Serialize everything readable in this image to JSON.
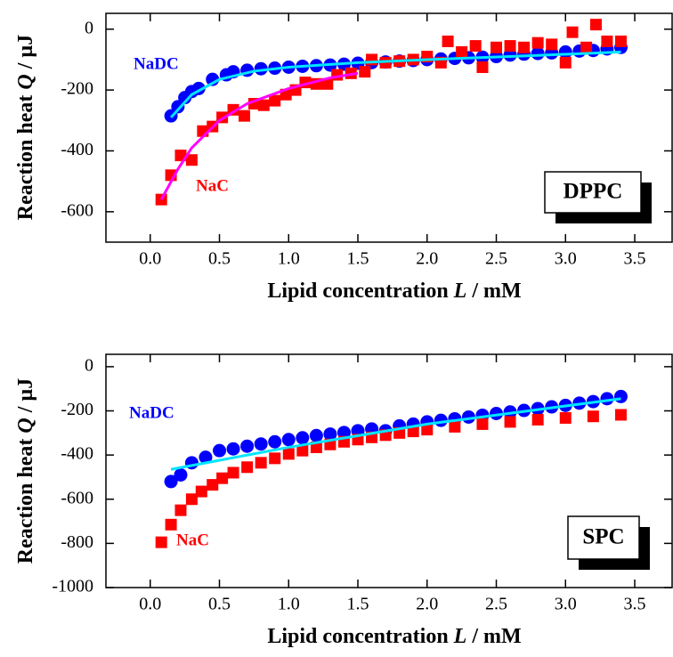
{
  "chart_data": [
    {
      "type": "scatter",
      "label": "DPPC",
      "xlabel": [
        "Lipid concentration ",
        "L",
        " / mM"
      ],
      "ylabel": [
        "Reaction heat ",
        "Q",
        " / µJ"
      ],
      "xlim": [
        -0.32,
        3.77
      ],
      "ylim": [
        -700,
        52
      ],
      "xticks": [
        {
          "value": 0,
          "label": "0.0"
        },
        0.5,
        {
          "value": 1,
          "label": "1.0"
        },
        1.5,
        {
          "value": 2,
          "label": "2.0"
        },
        2.5,
        {
          "value": 3,
          "label": "3.0"
        },
        3.5
      ],
      "yticks": [
        0,
        -200,
        -400,
        -600
      ],
      "series": [
        {
          "name": "NaDC",
          "color": "#0000ff",
          "marker": "circle",
          "x": [
            0.15,
            0.2,
            0.25,
            0.3,
            0.35,
            0.45,
            0.55,
            0.6,
            0.7,
            0.8,
            0.9,
            1.0,
            1.1,
            1.2,
            1.3,
            1.4,
            1.5,
            1.6,
            1.7,
            1.8,
            1.9,
            2.0,
            2.1,
            2.2,
            2.3,
            2.4,
            2.5,
            2.6,
            2.7,
            2.8,
            2.9,
            3.0,
            3.1,
            3.2,
            3.3,
            3.4
          ],
          "values": [
            -285,
            -255,
            -225,
            -205,
            -195,
            -165,
            -150,
            -140,
            -135,
            -130,
            -128,
            -125,
            -122,
            -120,
            -118,
            -115,
            -112,
            -110,
            -108,
            -105,
            -103,
            -100,
            -98,
            -96,
            -94,
            -92,
            -90,
            -85,
            -82,
            -80,
            -78,
            -75,
            -72,
            -70,
            -65,
            -60
          ]
        },
        {
          "name": "NaC",
          "color": "#ff0000",
          "marker": "square",
          "x": [
            0.08,
            0.15,
            0.22,
            0.3,
            0.38,
            0.45,
            0.52,
            0.6,
            0.68,
            0.75,
            0.82,
            0.9,
            0.98,
            1.05,
            1.12,
            1.2,
            1.28,
            1.35,
            1.45,
            1.55,
            1.6,
            1.7,
            1.8,
            1.9,
            2.0,
            2.1,
            2.15,
            2.25,
            2.35,
            2.4,
            2.5,
            2.6,
            2.7,
            2.8,
            2.9,
            3.0,
            3.05,
            3.15,
            3.22,
            3.3,
            3.4
          ],
          "values": [
            -560,
            -480,
            -415,
            -430,
            -335,
            -320,
            -290,
            -265,
            -285,
            -245,
            -250,
            -235,
            -215,
            -200,
            -175,
            -180,
            -180,
            -150,
            -145,
            -140,
            -100,
            -110,
            -105,
            -100,
            -90,
            -110,
            -40,
            -75,
            -55,
            -125,
            -60,
            -55,
            -60,
            -45,
            -50,
            -110,
            -10,
            -60,
            15,
            -40,
            -40
          ]
        },
        {
          "color": "#ff00ff",
          "marker": "line",
          "x": [
            0.08,
            0.2,
            0.3,
            0.5,
            0.7,
            1.0,
            1.3,
            1.5
          ],
          "values": [
            -560,
            -460,
            -390,
            -300,
            -245,
            -195,
            -160,
            -145
          ]
        },
        {
          "color": "#00e5ff",
          "marker": "line",
          "x": [
            0.15,
            0.3,
            0.5,
            0.75,
            1.0,
            1.5,
            2.0,
            2.7,
            3.4
          ],
          "values": [
            -290,
            -215,
            -165,
            -138,
            -125,
            -110,
            -100,
            -88,
            -75
          ]
        }
      ]
    },
    {
      "type": "scatter",
      "label": "SPC",
      "xlabel": [
        "Lipid concentration ",
        "L",
        " / mM"
      ],
      "ylabel": [
        "Reaction heat ",
        "Q",
        " / µJ"
      ],
      "xlim": [
        -0.32,
        3.77
      ],
      "ylim": [
        -1000,
        56
      ],
      "xticks": [
        {
          "value": 0,
          "label": "0.0"
        },
        0.5,
        {
          "value": 1,
          "label": "1.0"
        },
        1.5,
        {
          "value": 2,
          "label": "2.0"
        },
        2.5,
        {
          "value": 3,
          "label": "3.0"
        },
        3.5
      ],
      "yticks": [
        0,
        -200,
        -400,
        -600,
        -800,
        -1000
      ],
      "series": [
        {
          "name": "NaDC",
          "color": "#0000ff",
          "marker": "circle",
          "x": [
            0.15,
            0.22,
            0.3,
            0.4,
            0.5,
            0.6,
            0.7,
            0.8,
            0.9,
            1.0,
            1.1,
            1.2,
            1.3,
            1.4,
            1.5,
            1.6,
            1.7,
            1.8,
            1.9,
            2.0,
            2.1,
            2.2,
            2.3,
            2.4,
            2.5,
            2.6,
            2.7,
            2.8,
            2.9,
            3.0,
            3.1,
            3.2,
            3.3,
            3.4
          ],
          "values": [
            -520,
            -490,
            -435,
            -410,
            -380,
            -372,
            -360,
            -350,
            -340,
            -330,
            -322,
            -312,
            -305,
            -298,
            -290,
            -282,
            -290,
            -268,
            -260,
            -250,
            -243,
            -236,
            -228,
            -220,
            -212,
            -205,
            -198,
            -190,
            -182,
            -175,
            -165,
            -158,
            -145,
            -135
          ]
        },
        {
          "name": "NaC",
          "color": "#ff0000",
          "marker": "square",
          "x": [
            0.08,
            0.15,
            0.22,
            0.3,
            0.37,
            0.45,
            0.52,
            0.6,
            0.7,
            0.8,
            0.9,
            1.0,
            1.1,
            1.2,
            1.3,
            1.4,
            1.5,
            1.6,
            1.7,
            1.8,
            1.9,
            2.0,
            2.2,
            2.4,
            2.6,
            2.8,
            3.0,
            3.2,
            3.4
          ],
          "values": [
            -795,
            -715,
            -650,
            -600,
            -565,
            -535,
            -505,
            -480,
            -455,
            -435,
            -415,
            -395,
            -380,
            -365,
            -352,
            -340,
            -330,
            -320,
            -310,
            -300,
            -293,
            -285,
            -272,
            -260,
            -250,
            -240,
            -232,
            -225,
            -218
          ]
        },
        {
          "color": "#00e5ff",
          "marker": "line",
          "x": [
            0.15,
            1.0,
            2.0,
            3.4
          ],
          "values": [
            -465,
            -365,
            -260,
            -145
          ]
        }
      ]
    }
  ]
}
